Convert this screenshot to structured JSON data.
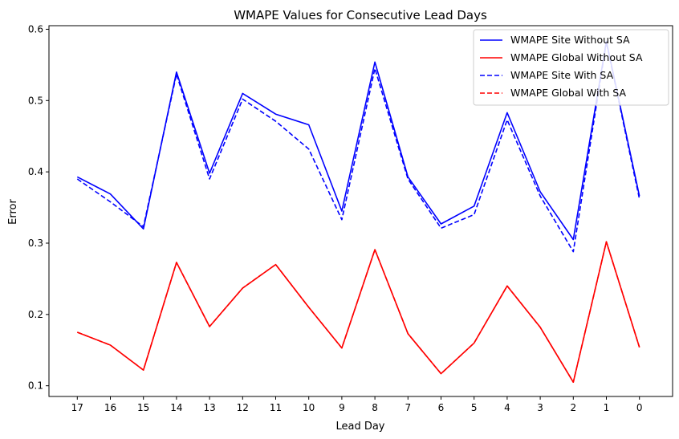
{
  "chart_data": {
    "type": "line",
    "title": "WMAPE Values for Consecutive Lead Days",
    "xlabel": "Lead Day",
    "ylabel": "Error",
    "categories": [
      "17",
      "16",
      "15",
      "14",
      "13",
      "12",
      "11",
      "10",
      "9",
      "8",
      "7",
      "6",
      "5",
      "4",
      "3",
      "2",
      "1",
      "0"
    ],
    "ylim": [
      0.085,
      0.605
    ],
    "yticks": [
      0.1,
      0.2,
      0.3,
      0.4,
      0.5,
      0.6
    ],
    "ytick_labels": [
      "0.1",
      "0.2",
      "0.3",
      "0.4",
      "0.5",
      "0.6"
    ],
    "grid": false,
    "legend_position": "top-right",
    "series": [
      {
        "name": "WMAPE Site Without SA",
        "color": "#0000ff",
        "dashed": false,
        "values": [
          0.393,
          0.369,
          0.32,
          0.54,
          0.398,
          0.51,
          0.481,
          0.466,
          0.345,
          0.554,
          0.393,
          0.327,
          0.352,
          0.483,
          0.372,
          0.305,
          0.583,
          0.366
        ]
      },
      {
        "name": "WMAPE Global Without SA",
        "color": "#ff0000",
        "dashed": false,
        "values": [
          0.175,
          0.157,
          0.122,
          0.273,
          0.183,
          0.237,
          0.27,
          0.21,
          0.153,
          0.291,
          0.173,
          0.117,
          0.16,
          0.24,
          0.182,
          0.105,
          0.302,
          0.154
        ]
      },
      {
        "name": "WMAPE Site With SA",
        "color": "#0000ff",
        "dashed": true,
        "values": [
          0.39,
          0.358,
          0.323,
          0.537,
          0.39,
          0.502,
          0.471,
          0.432,
          0.333,
          0.545,
          0.39,
          0.321,
          0.34,
          0.473,
          0.366,
          0.288,
          0.582,
          0.362
        ]
      },
      {
        "name": "WMAPE Global With SA",
        "color": "#ff0000",
        "dashed": true,
        "values": [
          0.175,
          0.157,
          0.122,
          0.273,
          0.183,
          0.237,
          0.27,
          0.21,
          0.153,
          0.291,
          0.173,
          0.117,
          0.16,
          0.24,
          0.182,
          0.105,
          0.302,
          0.154
        ]
      }
    ]
  }
}
